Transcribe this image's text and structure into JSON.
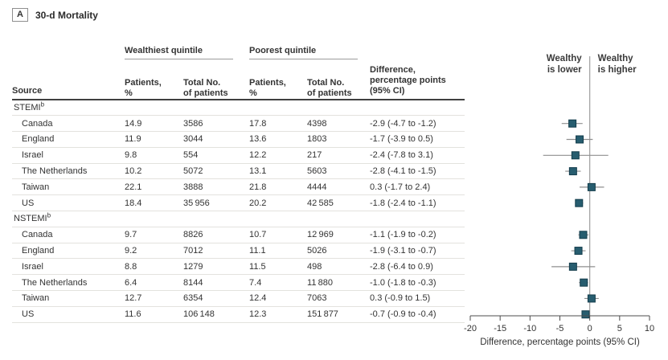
{
  "panel": {
    "letter": "A",
    "title": "30-d Mortality"
  },
  "table": {
    "headers": {
      "source": "Source",
      "wealthiest_group": "Wealthiest quintile",
      "poorest_group": "Poorest quintile",
      "patients_pct": "Patients,\n%",
      "total_no": "Total No.\nof patients",
      "difference": "Difference,\npercentage points\n(95% CI)"
    },
    "sections": [
      {
        "label": "STEMI",
        "sup": "b",
        "rows": [
          {
            "source": "Canada",
            "wealthiest_pct": "14.9",
            "wealthiest_total": "3586",
            "poorest_pct": "17.8",
            "poorest_total": "4398",
            "difference": "-2.9 (-4.7 to -1.2)"
          },
          {
            "source": "England",
            "wealthiest_pct": "11.9",
            "wealthiest_total": "3044",
            "poorest_pct": "13.6",
            "poorest_total": "1803",
            "difference": "-1.7 (-3.9 to 0.5)"
          },
          {
            "source": "Israel",
            "wealthiest_pct": "9.8",
            "wealthiest_total": "554",
            "poorest_pct": "12.2",
            "poorest_total": "217",
            "difference": "-2.4 (-7.8 to 3.1)"
          },
          {
            "source": "The Netherlands",
            "wealthiest_pct": "10.2",
            "wealthiest_total": "5072",
            "poorest_pct": "13.1",
            "poorest_total": "5603",
            "difference": "-2.8 (-4.1 to -1.5)"
          },
          {
            "source": "Taiwan",
            "wealthiest_pct": "22.1",
            "wealthiest_total": "3888",
            "poorest_pct": "21.8",
            "poorest_total": "4444",
            "difference": "0.3 (-1.7 to 2.4)"
          },
          {
            "source": "US",
            "wealthiest_pct": "18.4",
            "wealthiest_total": "35 956",
            "poorest_pct": "20.2",
            "poorest_total": "42 585",
            "difference": "-1.8 (-2.4 to -1.1)"
          }
        ]
      },
      {
        "label": "NSTEMI",
        "sup": "b",
        "rows": [
          {
            "source": "Canada",
            "wealthiest_pct": "9.7",
            "wealthiest_total": "8826",
            "poorest_pct": "10.7",
            "poorest_total": "12 969",
            "difference": "-1.1 (-1.9 to -0.2)"
          },
          {
            "source": "England",
            "wealthiest_pct": "9.2",
            "wealthiest_total": "7012",
            "poorest_pct": "11.1",
            "poorest_total": "5026",
            "difference": "-1.9 (-3.1 to -0.7)"
          },
          {
            "source": "Israel",
            "wealthiest_pct": "8.8",
            "wealthiest_total": "1279",
            "poorest_pct": "11.5",
            "poorest_total": "498",
            "difference": "-2.8 (-6.4 to 0.9)"
          },
          {
            "source": "The Netherlands",
            "wealthiest_pct": "6.4",
            "wealthiest_total": "8144",
            "poorest_pct": "7.4",
            "poorest_total": "11 880",
            "difference": "-1.0 (-1.8 to -0.3)"
          },
          {
            "source": "Taiwan",
            "wealthiest_pct": "12.7",
            "wealthiest_total": "6354",
            "poorest_pct": "12.4",
            "poorest_total": "7063",
            "difference": "0.3 (-0.9 to 1.5)"
          },
          {
            "source": "US",
            "wealthiest_pct": "11.6",
            "wealthiest_total": "106 148",
            "poorest_pct": "12.3",
            "poorest_total": "151 877",
            "difference": "-0.7 (-0.9 to -0.4)"
          }
        ]
      }
    ]
  },
  "chart_data": {
    "type": "scatter",
    "subtype": "forest-plot",
    "title": "30-d Mortality",
    "xlabel": "Difference, percentage points (95% CI)",
    "xlim": [
      -20,
      10
    ],
    "xticks": [
      -20,
      -15,
      -10,
      -5,
      0,
      5,
      10
    ],
    "reference_line_x": 0,
    "left_region_label_lines": [
      "Wealthy",
      "is lower"
    ],
    "right_region_label_lines": [
      "Wealthy",
      "is higher"
    ],
    "grid": false,
    "marker_color": "#275d6f",
    "marker_border_color": "#133c4b",
    "ci_line_color": "#8f8f8f",
    "axis_color": "#4d4d4d",
    "reference_line_color": "#9e9e9e",
    "series": [
      {
        "name": "STEMI",
        "points": [
          {
            "label": "Canada",
            "x": -2.9,
            "lo": -4.7,
            "hi": -1.2
          },
          {
            "label": "England",
            "x": -1.7,
            "lo": -3.9,
            "hi": 0.5
          },
          {
            "label": "Israel",
            "x": -2.4,
            "lo": -7.8,
            "hi": 3.1
          },
          {
            "label": "The Netherlands",
            "x": -2.8,
            "lo": -4.1,
            "hi": -1.5
          },
          {
            "label": "Taiwan",
            "x": 0.3,
            "lo": -1.7,
            "hi": 2.4
          },
          {
            "label": "US",
            "x": -1.8,
            "lo": -2.4,
            "hi": -1.1
          }
        ]
      },
      {
        "name": "NSTEMI",
        "points": [
          {
            "label": "Canada",
            "x": -1.1,
            "lo": -1.9,
            "hi": -0.2
          },
          {
            "label": "England",
            "x": -1.9,
            "lo": -3.1,
            "hi": -0.7
          },
          {
            "label": "Israel",
            "x": -2.8,
            "lo": -6.4,
            "hi": 0.9
          },
          {
            "label": "The Netherlands",
            "x": -1.0,
            "lo": -1.8,
            "hi": -0.3
          },
          {
            "label": "Taiwan",
            "x": 0.3,
            "lo": -0.9,
            "hi": 1.5
          },
          {
            "label": "US",
            "x": -0.7,
            "lo": -0.9,
            "hi": -0.4
          }
        ]
      }
    ]
  }
}
